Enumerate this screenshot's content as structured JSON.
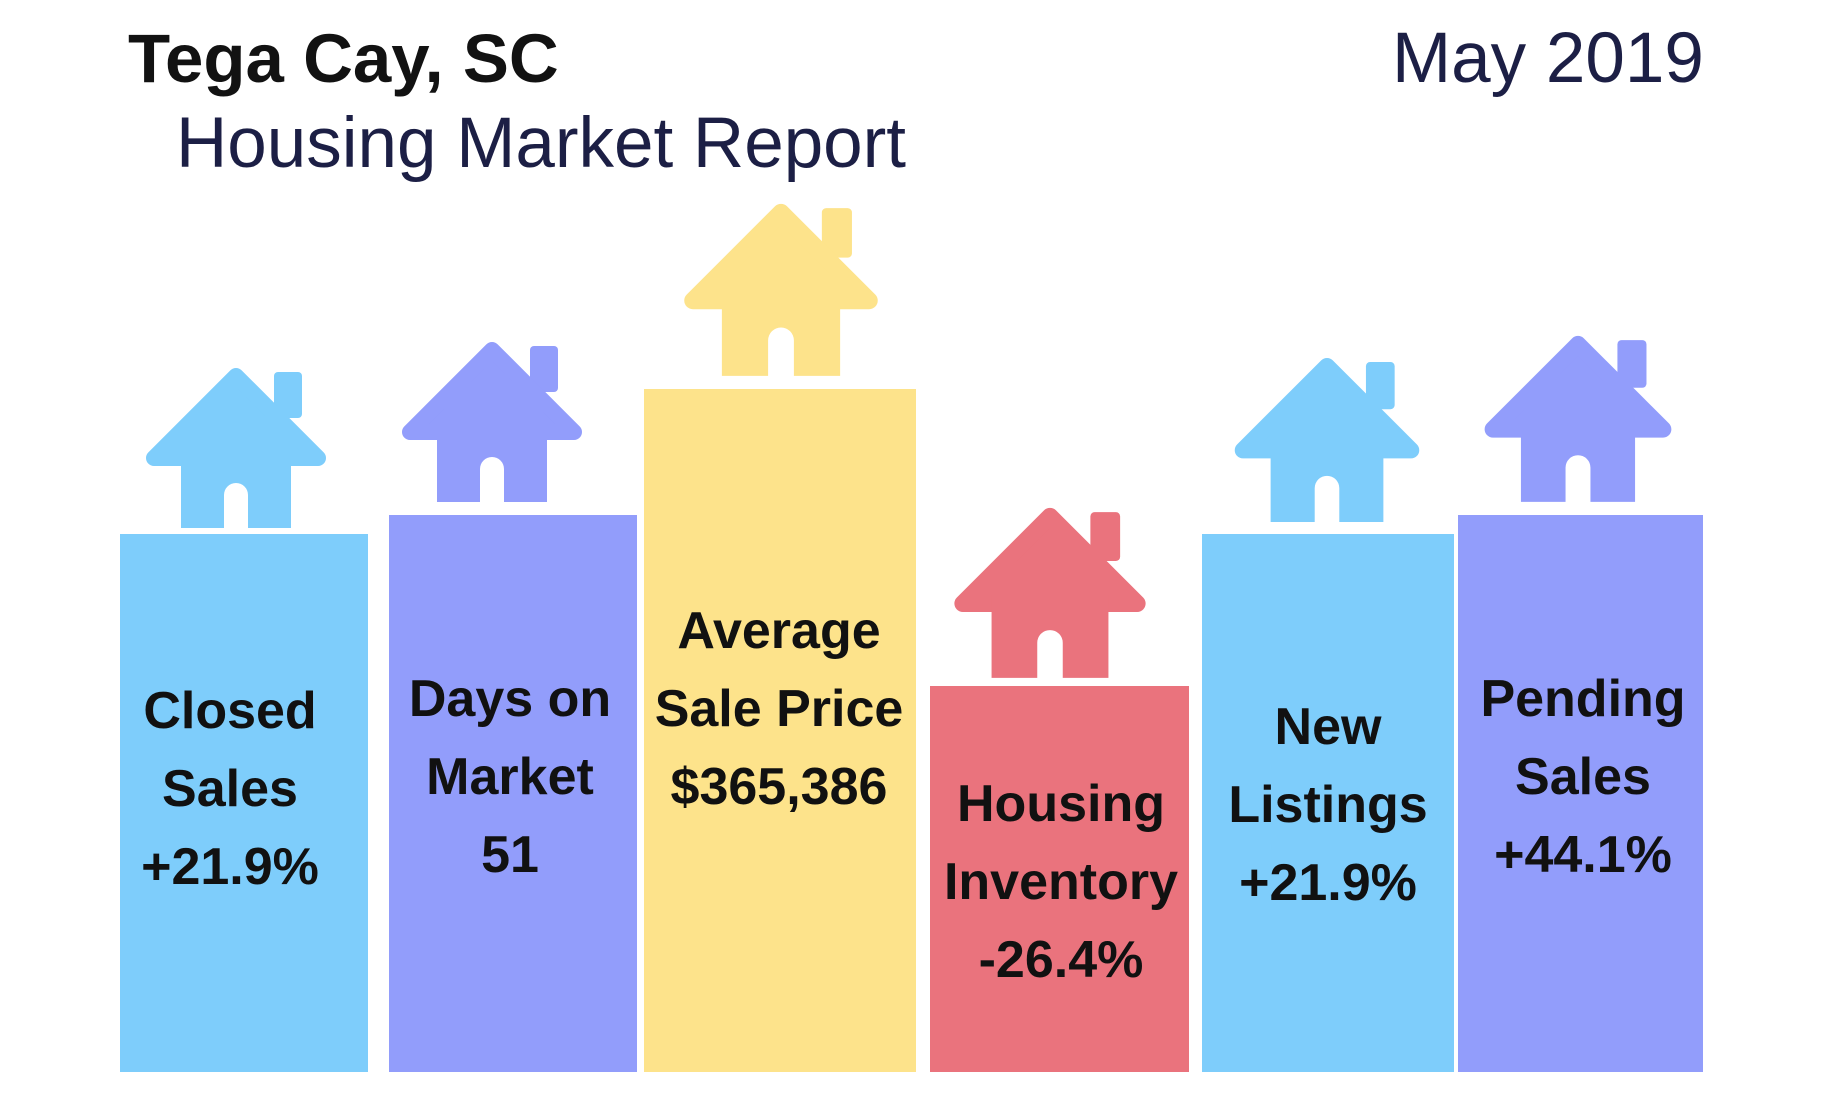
{
  "header": {
    "city": "Tega Cay, SC",
    "subtitle": "Housing Market Report",
    "date": "May 2019"
  },
  "colors": {
    "light_blue": "#7ecdfb",
    "periwinkle": "#929dfb",
    "yellow": "#fde38b",
    "red": "#ea737d"
  },
  "metrics": [
    {
      "line1": "Closed",
      "line2": "Sales",
      "value": "+21.9%",
      "color": "light_blue",
      "icon": "house-icon"
    },
    {
      "line1": "Days on",
      "line2": "Market",
      "value": "51",
      "color": "periwinkle",
      "icon": "house-icon"
    },
    {
      "line1": "Average",
      "line2": "Sale Price",
      "value": "$365,386",
      "color": "yellow",
      "icon": "house-icon"
    },
    {
      "line1": "Housing",
      "line2": "Inventory",
      "value": "-26.4%",
      "color": "red",
      "icon": "house-icon"
    },
    {
      "line1": "New",
      "line2": "Listings",
      "value": "+21.9%",
      "color": "light_blue",
      "icon": "house-icon"
    },
    {
      "line1": "Pending",
      "line2": "Sales",
      "value": "+44.1%",
      "color": "periwinkle",
      "icon": "house-icon"
    }
  ]
}
